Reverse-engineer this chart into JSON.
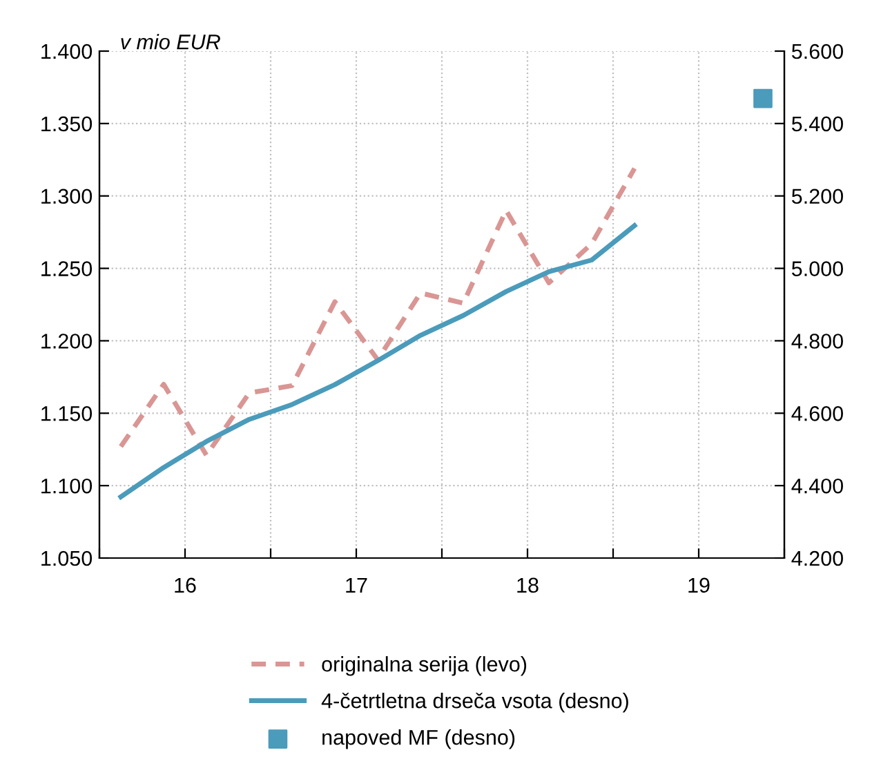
{
  "chart_data": {
    "type": "line",
    "annotations": [
      "v mio EUR"
    ],
    "xlim": [
      15.5,
      19.5
    ],
    "xticks": [
      {
        "value": 15.5,
        "label": null
      },
      16,
      {
        "value": 16.5,
        "label": null
      },
      17,
      {
        "value": 17.5,
        "label": null
      },
      18,
      {
        "value": 18.5,
        "label": null
      },
      19,
      {
        "value": 19.5,
        "label": null
      }
    ],
    "ylim": [
      1.05,
      1.4
    ],
    "yticks": [
      {
        "value": 1.05,
        "label": "1.050"
      },
      {
        "value": 1.1,
        "label": "1.100"
      },
      {
        "value": 1.15,
        "label": "1.150"
      },
      {
        "value": 1.2,
        "label": "1.200"
      },
      {
        "value": 1.25,
        "label": "1.250"
      },
      {
        "value": 1.3,
        "label": "1.300"
      },
      {
        "value": 1.35,
        "label": "1.350"
      },
      {
        "value": 1.4,
        "label": "1.400"
      }
    ],
    "y2lim": [
      4.2,
      5.6
    ],
    "y2ticks": [
      {
        "value": 4.2,
        "label": "4.200"
      },
      {
        "value": 4.4,
        "label": "4.400"
      },
      {
        "value": 4.6,
        "label": "4.600"
      },
      {
        "value": 4.8,
        "label": "4.800"
      },
      {
        "value": 5.0,
        "label": "5.000"
      },
      {
        "value": 5.2,
        "label": "5.200"
      },
      {
        "value": 5.4,
        "label": "5.400"
      },
      {
        "value": 5.6,
        "label": "5.600"
      }
    ],
    "grid": true,
    "legend": "bottom",
    "series": [
      {
        "name": "originalna serija (levo)",
        "line_style": "dashed",
        "color": "#d99694",
        "x": [
          15.625,
          15.875,
          16.125,
          16.375,
          16.625,
          16.875,
          17.125,
          17.375,
          17.625,
          17.875,
          18.125,
          18.375,
          18.625
        ],
        "values": [
          1.127,
          1.17,
          1.121,
          1.164,
          1.169,
          1.227,
          1.187,
          1.233,
          1.226,
          1.29,
          1.24,
          1.267,
          1.319
        ]
      },
      {
        "name": "4-četrtletna drseča vsota (desno)",
        "line_style": "solid",
        "axis": "y2",
        "color": "#4b9bbb",
        "x": [
          15.625,
          15.875,
          16.125,
          16.375,
          16.625,
          16.875,
          17.125,
          17.375,
          17.625,
          17.875,
          18.125,
          18.375,
          18.625
        ],
        "values": [
          4.369,
          4.45,
          4.522,
          4.583,
          4.624,
          4.679,
          4.745,
          4.815,
          4.87,
          4.936,
          4.991,
          5.023,
          5.118
        ]
      },
      {
        "name": "napoved MF (desno)",
        "type": "scatter",
        "marker": "square",
        "axis": "y2",
        "color": "#4b9bbb",
        "x": [
          19.375
        ],
        "values": [
          5.469
        ]
      }
    ]
  }
}
